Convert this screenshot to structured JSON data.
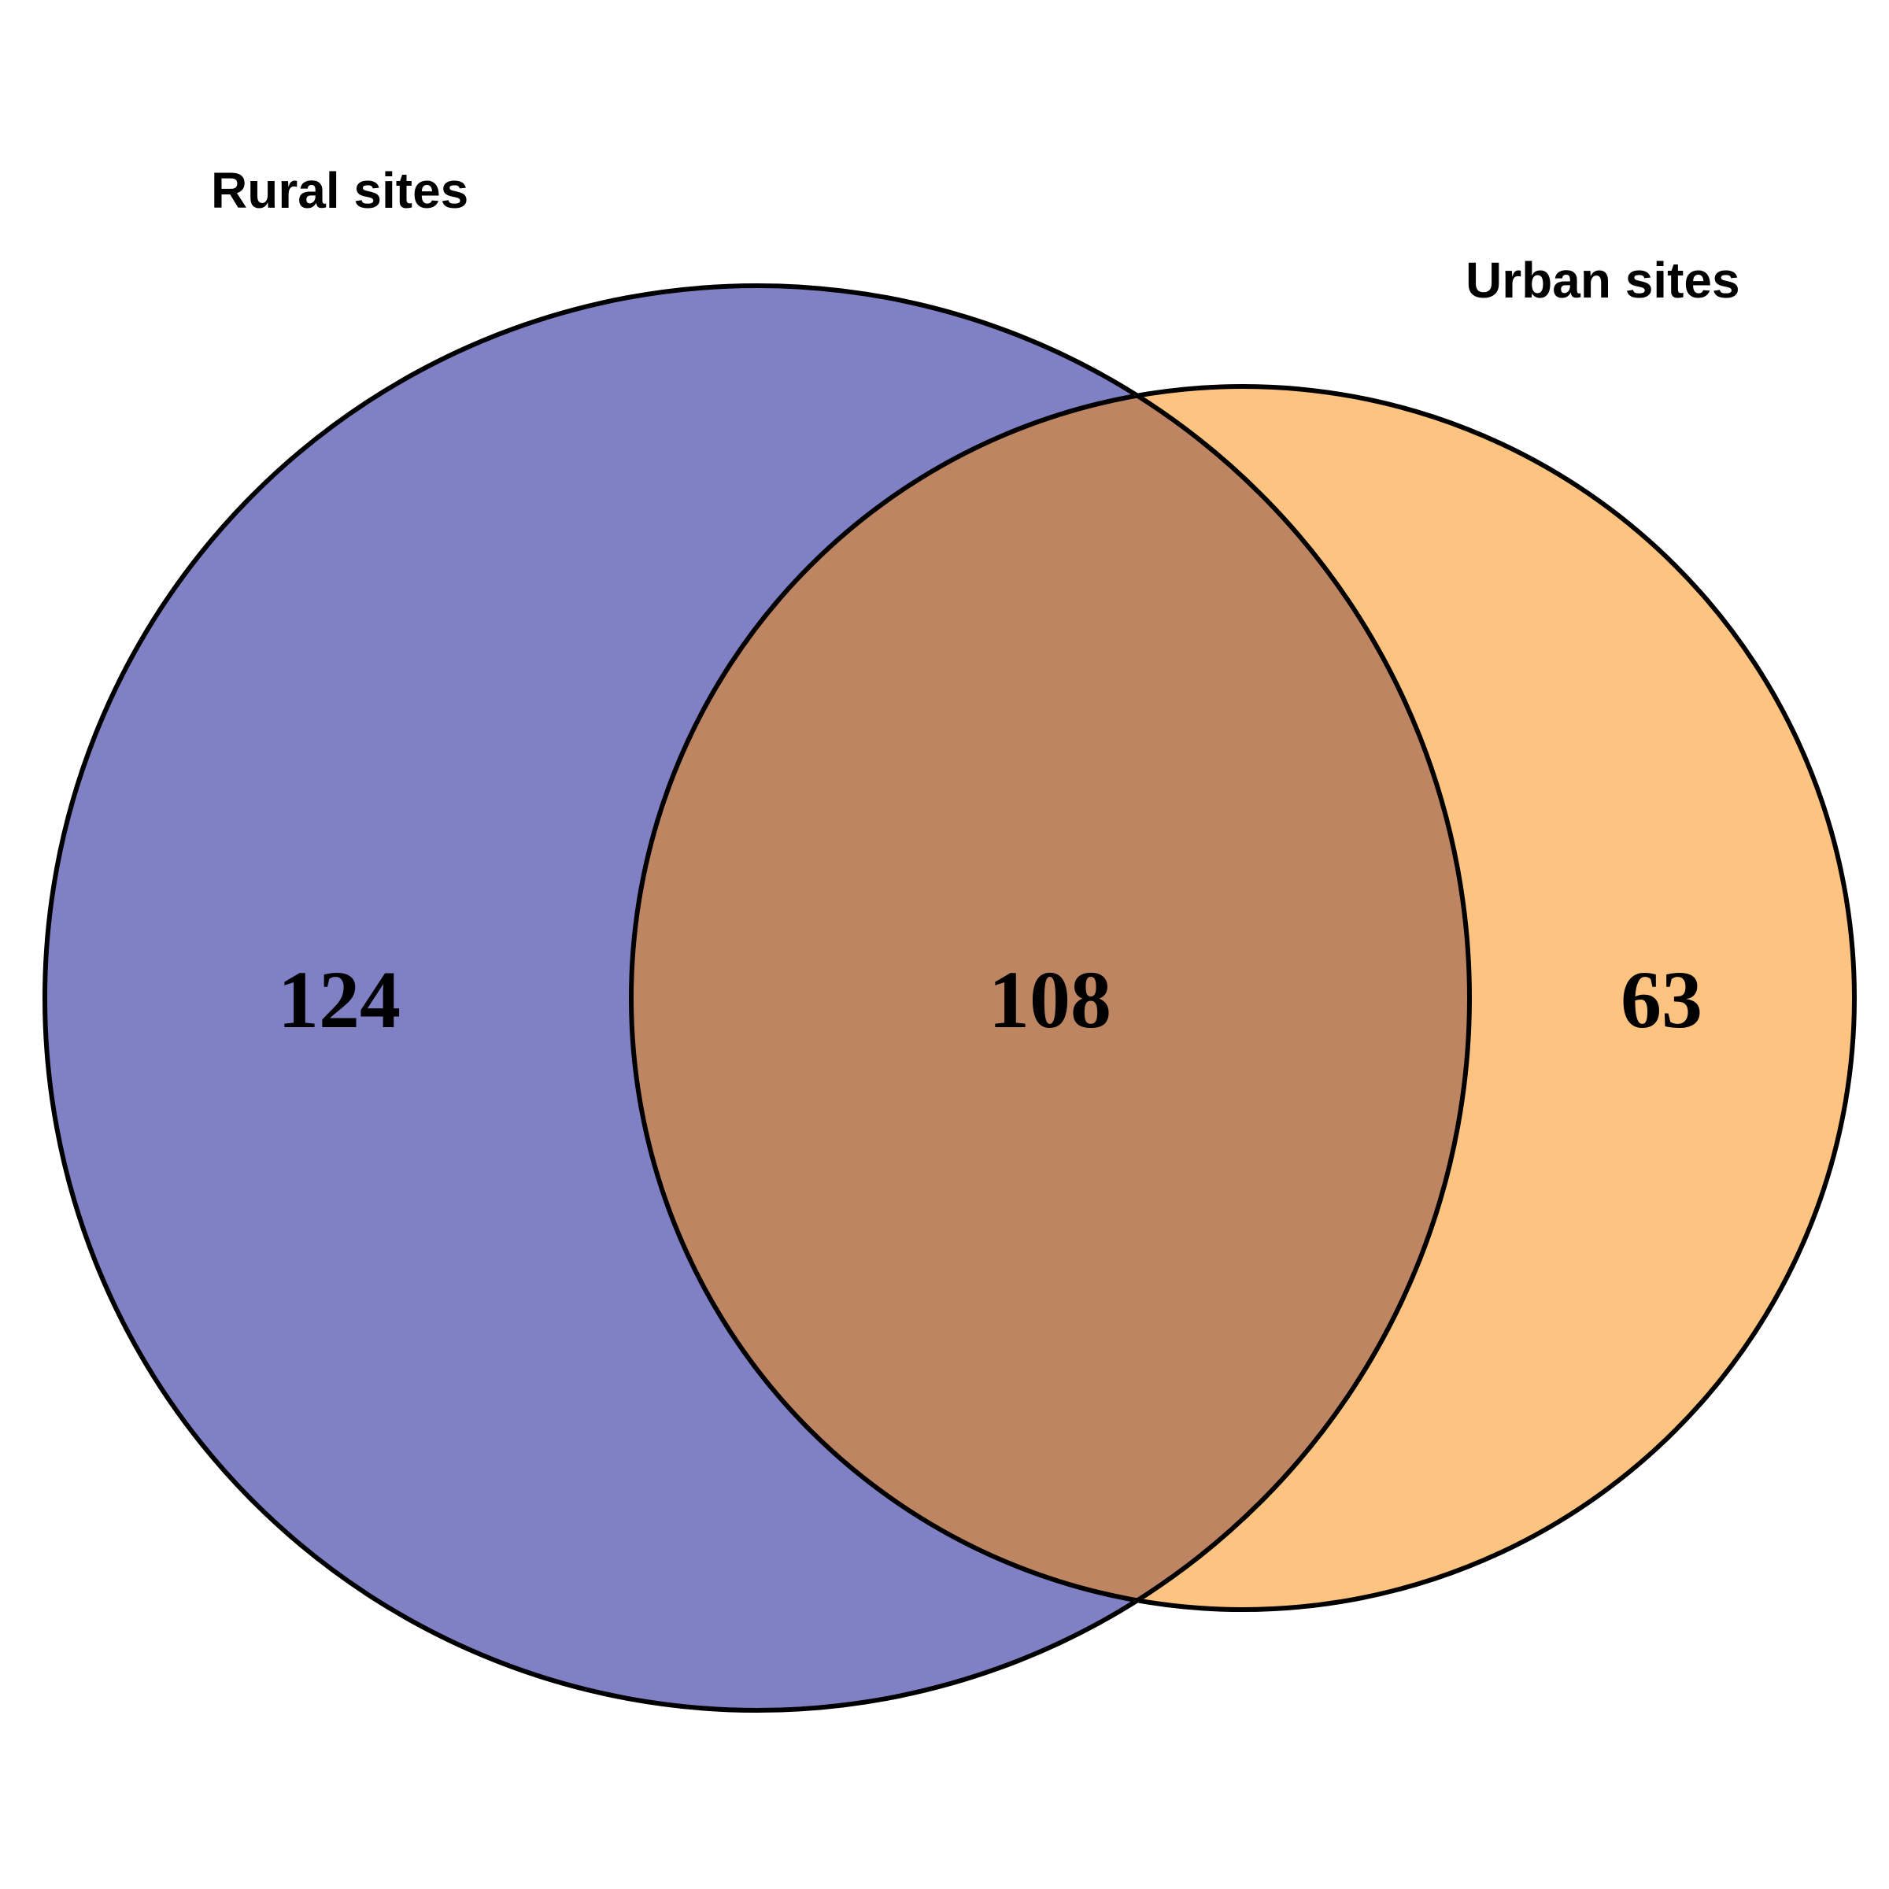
{
  "chart_data": {
    "type": "venn",
    "sets": [
      {
        "name": "Rural sites",
        "color": "#8080c4"
      },
      {
        "name": "Urban sites",
        "color": "#fdc481"
      }
    ],
    "regions": {
      "rural_only": 124,
      "intersection": 108,
      "urban_only": 63
    },
    "intersection_color": "#be8563"
  }
}
